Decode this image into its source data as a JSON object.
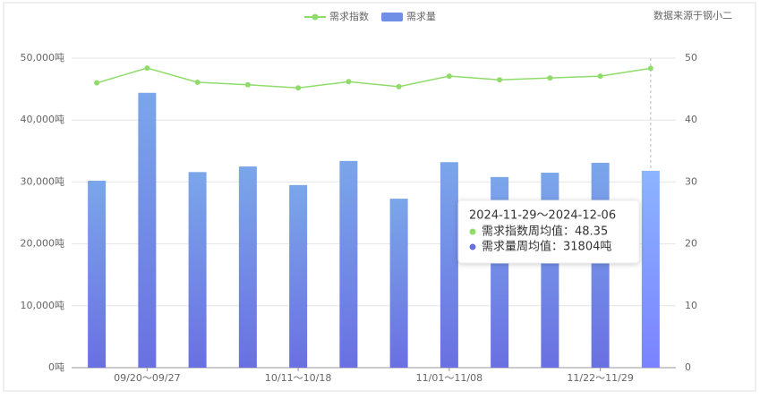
{
  "chart_data": {
    "type": "bar",
    "legend": {
      "position": "top"
    },
    "source": "数据来源于钢小二",
    "categories": [
      null,
      "09/20～09/27",
      null,
      null,
      "10/11～10/18",
      null,
      null,
      "11/01～11/08",
      null,
      null,
      "11/22～11/29",
      null
    ],
    "series": [
      {
        "name": "需求量",
        "type": "bar",
        "axis": "y",
        "color": "#6f8fe6",
        "values": [
          30200,
          44400,
          31600,
          32500,
          29500,
          33400,
          27300,
          33200,
          30800,
          31500,
          33100,
          31804
        ]
      },
      {
        "name": "需求指数",
        "type": "line",
        "axis": "y2",
        "color": "#8fdc6a",
        "values": [
          46.0,
          48.4,
          46.1,
          45.7,
          45.2,
          46.2,
          45.4,
          47.1,
          46.5,
          46.8,
          47.1,
          48.35
        ]
      }
    ],
    "ylim": [
      0,
      50000
    ],
    "yticks": [
      {
        "value": 0,
        "label": "0吨"
      },
      {
        "value": 10000,
        "label": "10,000吨"
      },
      {
        "value": 20000,
        "label": "20,000吨"
      },
      {
        "value": 30000,
        "label": "30,000吨"
      },
      {
        "value": 40000,
        "label": "40,000吨"
      },
      {
        "value": 50000,
        "label": "50,000吨"
      }
    ],
    "y2lim": [
      0,
      50
    ],
    "y2ticks": [
      0,
      10,
      20,
      30,
      40,
      50
    ],
    "grid": true,
    "tooltip": {
      "title": "2024-11-29～2024-12-06",
      "items": [
        "需求指数周均值：48.35",
        "需求量周均值：31804吨"
      ]
    }
  }
}
